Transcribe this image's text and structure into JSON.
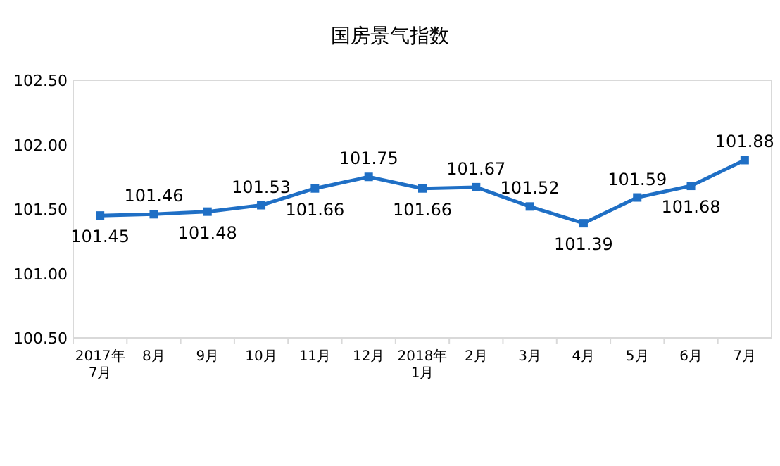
{
  "chart_data": {
    "type": "line",
    "title": "国房景气指数",
    "categories": [
      "2017年\n7月",
      "8月",
      "9月",
      "10月",
      "11月",
      "12月",
      "2018年\n1月",
      "2月",
      "3月",
      "4月",
      "5月",
      "6月",
      "7月"
    ],
    "series": [
      {
        "color": "#1f6fc5",
        "values": [
          101.45,
          101.46,
          101.48,
          101.53,
          101.66,
          101.75,
          101.66,
          101.67,
          101.52,
          101.39,
          101.59,
          101.68,
          101.88
        ]
      }
    ],
    "ylim": [
      100.5,
      102.5
    ],
    "yticks": [
      {
        "value": 100.5,
        "label": "100.50"
      },
      {
        "value": 101,
        "label": "101.00"
      },
      {
        "value": 101.5,
        "label": "101.50"
      },
      {
        "value": 102,
        "label": "102.00"
      },
      {
        "value": 102.5,
        "label": "102.50"
      }
    ],
    "marker": "square",
    "line_style": "solid",
    "grid": false,
    "data_labels": true
  }
}
